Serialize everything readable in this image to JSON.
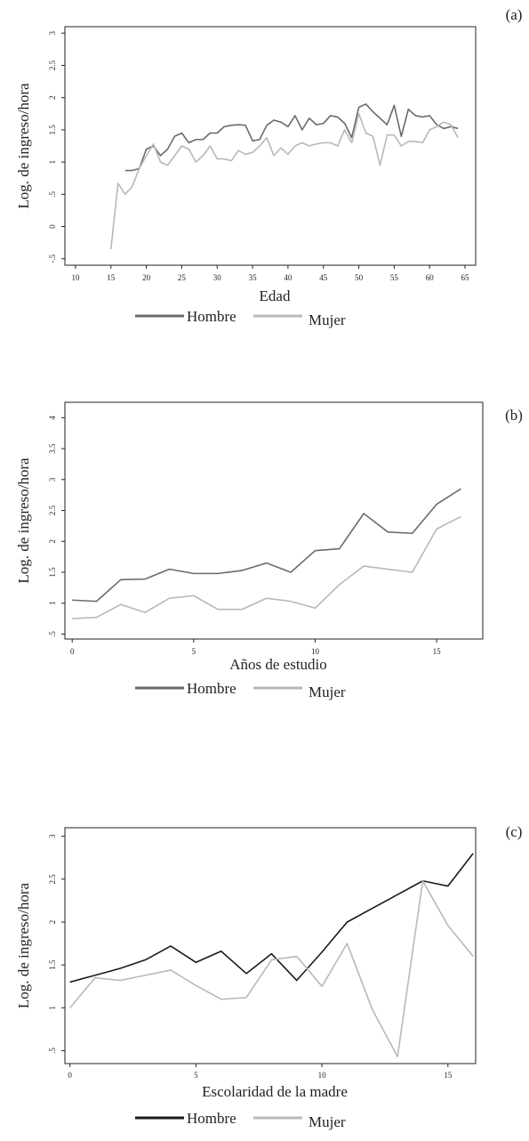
{
  "chart_data": [
    {
      "type": "line",
      "panel_label": "(a)",
      "xlabel": "Edad",
      "ylabel": "Log. de ingreso/hora",
      "x": [
        15,
        16,
        17,
        18,
        19,
        20,
        21,
        22,
        23,
        24,
        25,
        26,
        27,
        28,
        29,
        30,
        31,
        32,
        33,
        34,
        35,
        36,
        37,
        38,
        39,
        40,
        41,
        42,
        43,
        44,
        45,
        46,
        47,
        48,
        49,
        50,
        51,
        52,
        53,
        54,
        55,
        56,
        57,
        58,
        59,
        60,
        61,
        62,
        63,
        64
      ],
      "series": [
        {
          "name": "Hombre",
          "color": "#6b6b6b",
          "values": [
            null,
            null,
            0.87,
            0.87,
            0.9,
            1.2,
            1.25,
            1.1,
            1.2,
            1.4,
            1.45,
            1.3,
            1.35,
            1.35,
            1.45,
            1.45,
            1.55,
            1.57,
            1.58,
            1.57,
            1.33,
            1.35,
            1.57,
            1.65,
            1.62,
            1.55,
            1.72,
            1.5,
            1.68,
            1.58,
            1.6,
            1.72,
            1.7,
            1.6,
            1.38,
            1.85,
            1.9,
            1.78,
            1.68,
            1.58,
            1.88,
            1.4,
            1.82,
            1.72,
            1.7,
            1.72,
            1.58,
            1.52,
            1.55,
            1.52
          ]
        },
        {
          "name": "Mujer",
          "color": "#b8b8b8",
          "values": [
            -0.35,
            0.67,
            0.5,
            0.62,
            0.9,
            1.1,
            1.28,
            1.0,
            0.95,
            1.1,
            1.25,
            1.2,
            1.0,
            1.1,
            1.25,
            1.05,
            1.05,
            1.02,
            1.18,
            1.12,
            1.15,
            1.25,
            1.38,
            1.1,
            1.22,
            1.12,
            1.25,
            1.3,
            1.25,
            1.28,
            1.3,
            1.3,
            1.25,
            1.5,
            1.3,
            1.75,
            1.45,
            1.4,
            0.95,
            1.42,
            1.42,
            1.25,
            1.32,
            1.32,
            1.3,
            1.5,
            1.55,
            1.62,
            1.58,
            1.38
          ]
        }
      ],
      "xlim": [
        8.5,
        66.5
      ],
      "xticks": [
        10,
        15,
        20,
        25,
        30,
        35,
        40,
        45,
        50,
        55,
        60,
        65
      ],
      "ylim": [
        -0.6,
        3.1
      ],
      "yticks": [
        {
          "value": -0.5,
          "label": "-.5"
        },
        0,
        {
          "value": 0.5,
          "label": ".5"
        },
        1,
        1.5,
        2,
        2.5,
        3
      ]
    },
    {
      "type": "line",
      "panel_label": "(b)",
      "xlabel": "Años de estudio",
      "ylabel": "Log. de ingreso/hora",
      "x": [
        0,
        1,
        2,
        3,
        4,
        5,
        6,
        7,
        8,
        9,
        10,
        11,
        12,
        13,
        14,
        15,
        16
      ],
      "series": [
        {
          "name": "Hombre",
          "color": "#6b6b6b",
          "values": [
            1.05,
            1.03,
            1.38,
            1.39,
            1.55,
            1.48,
            1.48,
            1.53,
            1.65,
            1.5,
            1.85,
            1.88,
            2.45,
            2.15,
            2.13,
            2.6,
            2.85
          ]
        },
        {
          "name": "Mujer",
          "color": "#b8b8b8",
          "values": [
            0.75,
            0.77,
            0.98,
            0.85,
            1.08,
            1.12,
            0.9,
            0.9,
            1.08,
            1.03,
            0.92,
            1.3,
            1.6,
            1.55,
            1.5,
            2.2,
            2.4
          ]
        }
      ],
      "xlim": [
        -0.3,
        16.9
      ],
      "xticks": [
        0,
        5,
        10,
        15
      ],
      "ylim": [
        0.42,
        4.25
      ],
      "yticks": [
        {
          "value": 0.5,
          "label": ".5"
        },
        1,
        1.5,
        2,
        2.5,
        3,
        3.5,
        4
      ]
    },
    {
      "type": "line",
      "panel_label": "(c)",
      "xlabel": "Escolaridad de la madre",
      "ylabel": "Log. de ingreso/hora",
      "x": [
        0,
        1,
        2,
        3,
        4,
        5,
        6,
        7,
        8,
        9,
        10,
        11,
        12,
        13,
        14,
        15,
        16
      ],
      "series": [
        {
          "name": "Hombre",
          "color": "#1a1a1a",
          "values": [
            1.3,
            1.38,
            1.46,
            1.56,
            1.72,
            1.53,
            1.66,
            1.4,
            1.63,
            1.32,
            1.65,
            2.0,
            2.16,
            2.32,
            2.48,
            2.42,
            2.8
          ]
        },
        {
          "name": "Mujer",
          "color": "#b8b8b8",
          "values": [
            1.0,
            1.35,
            1.32,
            1.38,
            1.44,
            1.26,
            1.1,
            1.12,
            1.56,
            1.6,
            1.25,
            1.75,
            0.98,
            0.43,
            2.48,
            1.96,
            1.6
          ]
        }
      ],
      "xlim": [
        -0.2,
        16.1
      ],
      "xticks": [
        0,
        5,
        10,
        15
      ],
      "ylim": [
        0.35,
        3.1
      ],
      "yticks": [
        {
          "value": 0.5,
          "label": ".5"
        },
        1,
        1.5,
        2,
        2.5,
        3
      ]
    }
  ]
}
